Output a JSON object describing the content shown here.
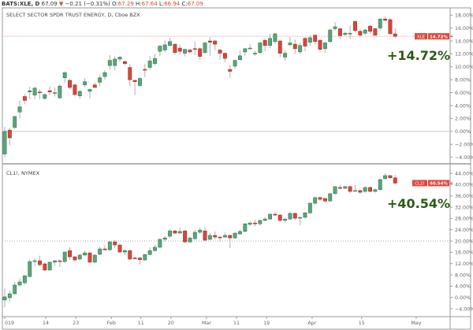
{
  "header": {
    "symbol": "BATS:XLE, D",
    "last": "67.09",
    "direction_icon": "triangle-down-icon",
    "change": "−0.21 (−0.31%)",
    "open_label": "O:",
    "open": "67.29",
    "high_label": "H:",
    "high": "67.64",
    "low_label": "L:",
    "low": "66.94",
    "close_label": "C:",
    "close": "67.09"
  },
  "colors": {
    "up": "#5aa57a",
    "up_border": "#2f6e48",
    "down": "#d9463a",
    "down_border": "#8e2b22",
    "badge": "#e0483b",
    "annotation": "#2d5a16"
  },
  "chart_data": [
    {
      "type": "candlestick",
      "title": "SELECT SECTOR SPDR TRUST ENERGY, D, Cboe BZX",
      "badge_symbol": "XLE",
      "badge_value": "14.72%",
      "annotation": "+14.72%",
      "last_value": 14.72,
      "ylim": [
        -4.9,
        19.0
      ],
      "yticks": [
        18,
        16,
        14,
        12,
        10,
        8,
        6,
        4,
        2,
        0,
        -2,
        -4
      ],
      "baseline": 0,
      "ohlc": [
        [
          -3.5,
          0.7,
          -4.0,
          0.0
        ],
        [
          0.2,
          0.6,
          -2.1,
          -1.0
        ],
        [
          0.6,
          2.4,
          0.4,
          2.3
        ],
        [
          3.0,
          4.8,
          2.0,
          3.8
        ],
        [
          5.4,
          5.8,
          4.2,
          4.8
        ],
        [
          6.1,
          6.9,
          5.0,
          6.3
        ],
        [
          5.6,
          6.9,
          5.0,
          6.7
        ],
        [
          6.1,
          6.5,
          5.0,
          6.0
        ],
        [
          5.1,
          5.9,
          4.9,
          5.7
        ],
        [
          6.3,
          7.0,
          5.6,
          6.1
        ],
        [
          6.0,
          6.8,
          5.4,
          6.0
        ],
        [
          5.2,
          7.3,
          5.0,
          7.0
        ],
        [
          8.3,
          9.3,
          7.5,
          9.1
        ],
        [
          7.9,
          8.1,
          6.5,
          6.8
        ],
        [
          7.2,
          7.4,
          5.4,
          5.7
        ],
        [
          5.5,
          6.4,
          5.0,
          6.2
        ],
        [
          7.2,
          8.2,
          6.8,
          7.7
        ],
        [
          6.2,
          6.6,
          5.1,
          6.5
        ],
        [
          7.2,
          7.6,
          6.8,
          6.8
        ],
        [
          7.6,
          8.8,
          7.0,
          8.3
        ],
        [
          8.5,
          9.5,
          8.0,
          9.1
        ],
        [
          10.2,
          11.8,
          9.6,
          11.0
        ],
        [
          10.2,
          11.6,
          9.4,
          11.2
        ],
        [
          11.2,
          11.6,
          10.8,
          11.5
        ],
        [
          10.8,
          11.0,
          10.2,
          10.5
        ],
        [
          9.9,
          10.4,
          7.0,
          8.0
        ],
        [
          7.9,
          8.0,
          5.6,
          7.7
        ],
        [
          7.1,
          8.4,
          6.9,
          8.2
        ],
        [
          9.6,
          10.4,
          8.4,
          9.5
        ],
        [
          9.9,
          11.7,
          9.5,
          10.9
        ],
        [
          10.5,
          12.0,
          10.2,
          11.3
        ],
        [
          12.4,
          13.4,
          11.6,
          13.2
        ],
        [
          12.6,
          14.1,
          12.2,
          13.4
        ],
        [
          13.3,
          14.5,
          13.1,
          13.9
        ],
        [
          13.5,
          13.6,
          11.8,
          12.2
        ],
        [
          12.9,
          13.4,
          11.9,
          12.4
        ],
        [
          12.1,
          12.8,
          11.6,
          12.7
        ],
        [
          12.6,
          12.8,
          12.1,
          12.3
        ],
        [
          12.8,
          13.9,
          11.8,
          12.7
        ],
        [
          12.8,
          13.0,
          11.0,
          11.6
        ],
        [
          12.2,
          13.8,
          12.0,
          13.7
        ],
        [
          14.0,
          14.6,
          11.7,
          13.8
        ],
        [
          14.0,
          14.1,
          12.6,
          13.5
        ],
        [
          12.6,
          12.8,
          11.1,
          12.1
        ],
        [
          12.1,
          12.2,
          10.7,
          11.3
        ],
        [
          9.6,
          10.3,
          8.3,
          9.3
        ],
        [
          10.1,
          11.1,
          9.7,
          11.0
        ],
        [
          11.1,
          12.5,
          10.9,
          11.7
        ],
        [
          12.3,
          12.9,
          11.7,
          12.8
        ],
        [
          12.9,
          13.5,
          12.7,
          12.9
        ],
        [
          12.1,
          12.5,
          11.7,
          12.1
        ],
        [
          12.2,
          13.8,
          12.0,
          13.7
        ],
        [
          14.1,
          14.4,
          12.4,
          13.3
        ],
        [
          13.3,
          15.1,
          12.9,
          14.4
        ],
        [
          13.9,
          15.3,
          13.5,
          15.1
        ],
        [
          14.0,
          14.1,
          11.5,
          12.1
        ],
        [
          11.5,
          12.6,
          11.0,
          12.1
        ],
        [
          13.4,
          14.6,
          13.2,
          13.7
        ],
        [
          13.5,
          14.2,
          12.0,
          12.8
        ],
        [
          12.3,
          13.8,
          12.0,
          13.3
        ],
        [
          14.4,
          14.6,
          12.4,
          13.2
        ],
        [
          13.8,
          14.9,
          13.2,
          14.5
        ],
        [
          14.9,
          15.0,
          13.5,
          13.9
        ],
        [
          14.1,
          14.3,
          12.3,
          12.7
        ],
        [
          12.8,
          13.9,
          12.2,
          13.7
        ],
        [
          13.9,
          15.9,
          13.7,
          15.7
        ],
        [
          15.9,
          16.9,
          15.6,
          16.2
        ],
        [
          15.9,
          16.0,
          14.3,
          14.8
        ],
        [
          15.0,
          15.4,
          14.8,
          15.2
        ],
        [
          15.1,
          16.4,
          14.3,
          15.2
        ],
        [
          17.0,
          17.2,
          15.3,
          15.6
        ],
        [
          15.5,
          15.8,
          14.6,
          14.9
        ],
        [
          15.2,
          15.9,
          14.9,
          15.7
        ],
        [
          16.3,
          16.5,
          15.1,
          15.5
        ],
        [
          15.9,
          16.0,
          14.7,
          14.9
        ],
        [
          16.0,
          17.5,
          15.6,
          17.4
        ],
        [
          17.4,
          17.8,
          17.0,
          17.2
        ],
        [
          17.3,
          17.5,
          15.0,
          15.1
        ],
        [
          15.1,
          16.0,
          14.4,
          14.72
        ]
      ]
    },
    {
      "type": "candlestick",
      "title": "CL1!, NYMEX",
      "badge_symbol": "CL1!",
      "badge_value": "40.54%",
      "annotation": "+40.54%",
      "last_value": 40.54,
      "ylim": [
        -6.8,
        47.1
      ],
      "yticks": [
        44,
        40,
        36,
        32,
        28,
        24,
        20,
        16,
        12,
        8,
        4,
        0,
        -4
      ],
      "baseline": 20,
      "ohlc": [
        [
          -0.9,
          3.2,
          -3.5,
          0.2
        ],
        [
          -0.1,
          2.4,
          -1.5,
          1.3
        ],
        [
          1.3,
          5.5,
          1.0,
          4.4
        ],
        [
          4.4,
          6.6,
          3.6,
          5.5
        ],
        [
          5.2,
          7.9,
          4.5,
          7.7
        ],
        [
          7.4,
          13.5,
          7.2,
          12.7
        ],
        [
          12.9,
          14.0,
          11.2,
          13.0
        ],
        [
          13.0,
          14.8,
          11.0,
          11.6
        ],
        [
          11.9,
          12.4,
          9.3,
          9.7
        ],
        [
          9.7,
          12.7,
          9.5,
          12.5
        ],
        [
          12.5,
          13.3,
          11.4,
          13.0
        ],
        [
          13.0,
          13.3,
          10.8,
          12.8
        ],
        [
          12.7,
          16.3,
          12.4,
          16.1
        ],
        [
          16.6,
          17.8,
          13.3,
          14.4
        ],
        [
          14.4,
          14.8,
          12.8,
          13.3
        ],
        [
          13.6,
          15.6,
          13.2,
          15.0
        ],
        [
          15.0,
          16.6,
          14.8,
          15.8
        ],
        [
          15.8,
          16.0,
          12.3,
          12.5
        ],
        [
          12.5,
          15.3,
          12.1,
          15.0
        ],
        [
          15.3,
          18.0,
          15.0,
          17.2
        ],
        [
          17.2,
          18.5,
          16.6,
          16.9
        ],
        [
          16.9,
          20.0,
          16.6,
          19.7
        ],
        [
          19.7,
          20.4,
          17.5,
          18.6
        ],
        [
          18.6,
          19.2,
          15.8,
          16.1
        ],
        [
          16.1,
          17.2,
          15.0,
          16.6
        ],
        [
          16.6,
          17.0,
          13.2,
          13.6
        ],
        [
          14.0,
          14.5,
          13.5,
          13.8
        ],
        [
          14.0,
          14.3,
          11.7,
          13.4
        ],
        [
          13.3,
          15.5,
          13.0,
          15.2
        ],
        [
          15.2,
          17.8,
          14.9,
          16.6
        ],
        [
          16.6,
          18.5,
          16.3,
          17.8
        ],
        [
          17.8,
          20.8,
          17.4,
          20.6
        ],
        [
          20.6,
          21.8,
          19.8,
          21.1
        ],
        [
          21.7,
          24.2,
          21.0,
          23.6
        ],
        [
          23.6,
          24.0,
          22.5,
          22.8
        ],
        [
          22.8,
          24.8,
          22.6,
          23.4
        ],
        [
          23.6,
          23.9,
          19.3,
          19.7
        ],
        [
          19.7,
          21.5,
          19.2,
          21.1
        ],
        [
          20.8,
          23.9,
          20.5,
          23.1
        ],
        [
          23.1,
          24.8,
          22.5,
          23.9
        ],
        [
          23.6,
          24.8,
          20.0,
          20.3
        ],
        [
          20.6,
          22.8,
          20.2,
          22.0
        ],
        [
          22.0,
          23.4,
          20.6,
          21.4
        ],
        [
          21.4,
          21.8,
          19.8,
          21.2
        ],
        [
          21.4,
          23.0,
          21.1,
          22.0
        ],
        [
          22.0,
          22.3,
          17.5,
          21.1
        ],
        [
          21.1,
          23.1,
          20.8,
          22.8
        ],
        [
          22.5,
          24.2,
          22.2,
          23.4
        ],
        [
          23.4,
          26.4,
          23.1,
          26.1
        ],
        [
          25.9,
          27.0,
          25.4,
          26.4
        ],
        [
          26.4,
          27.6,
          25.2,
          26.2
        ],
        [
          26.1,
          27.6,
          25.5,
          27.3
        ],
        [
          27.3,
          28.5,
          27.0,
          27.8
        ],
        [
          27.8,
          29.8,
          27.5,
          29.5
        ],
        [
          29.5,
          30.4,
          29.0,
          29.2
        ],
        [
          29.2,
          29.6,
          26.8,
          27.3
        ],
        [
          27.3,
          28.0,
          26.5,
          27.8
        ],
        [
          27.8,
          30.3,
          27.5,
          29.8
        ],
        [
          29.8,
          30.2,
          27.4,
          28.1
        ],
        [
          28.1,
          28.6,
          25.6,
          28.4
        ],
        [
          28.4,
          30.4,
          28.0,
          30.0
        ],
        [
          30.0,
          33.7,
          29.6,
          33.4
        ],
        [
          33.4,
          35.7,
          33.0,
          35.4
        ],
        [
          35.4,
          35.8,
          34.2,
          34.8
        ],
        [
          35.1,
          35.4,
          33.6,
          34.2
        ],
        [
          34.2,
          37.1,
          34.0,
          36.8
        ],
        [
          36.8,
          39.5,
          36.5,
          39.3
        ],
        [
          39.0,
          40.0,
          38.3,
          38.7
        ],
        [
          38.7,
          39.6,
          38.4,
          39.3
        ],
        [
          39.3,
          39.6,
          37.0,
          37.6
        ],
        [
          37.9,
          39.9,
          37.6,
          37.9
        ],
        [
          37.9,
          38.2,
          36.6,
          37.3
        ],
        [
          37.6,
          39.4,
          37.0,
          39.0
        ],
        [
          39.0,
          39.4,
          37.4,
          37.6
        ],
        [
          37.6,
          38.6,
          37.2,
          38.2
        ],
        [
          38.2,
          42.2,
          38.0,
          41.8
        ],
        [
          42.1,
          44.0,
          41.8,
          43.2
        ],
        [
          43.2,
          43.4,
          42.0,
          42.4
        ],
        [
          42.4,
          43.4,
          40.2,
          40.54
        ]
      ]
    }
  ],
  "x_axis": {
    "ticks": [
      {
        "label": "019",
        "bar": 0
      },
      {
        "label": "14",
        "bar": 8.2
      },
      {
        "label": "23",
        "bar": 14.2
      },
      {
        "label": "Feb",
        "bar": 21.3
      },
      {
        "label": "11",
        "bar": 27.2
      },
      {
        "label": "20",
        "bar": 33.2
      },
      {
        "label": "Mar",
        "bar": 40.3
      },
      {
        "label": "11",
        "bar": 46.3
      },
      {
        "label": "19",
        "bar": 52.3
      },
      {
        "label": "Apr",
        "bar": 61.4
      },
      {
        "label": "15",
        "bar": 71.3
      },
      {
        "label": "May",
        "bar": 82.2
      }
    ]
  }
}
